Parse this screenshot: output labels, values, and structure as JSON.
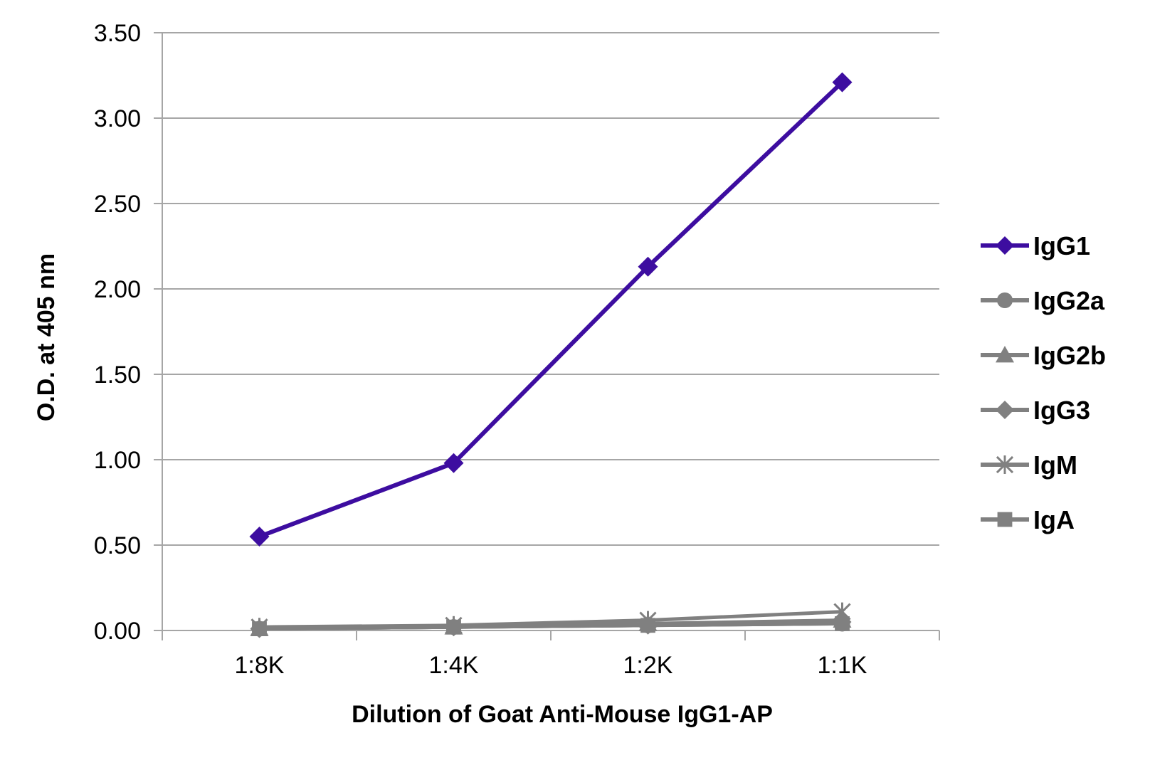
{
  "chart_data": {
    "type": "line",
    "title": "",
    "xlabel": "Dilution of Goat Anti-Mouse IgG1-AP",
    "ylabel": "O.D. at 405 nm",
    "categories": [
      "1:8K",
      "1:4K",
      "1:2K",
      "1:1K"
    ],
    "ylim": [
      0,
      3.5
    ],
    "yticks": [
      "0.00",
      "0.50",
      "1.00",
      "1.50",
      "2.00",
      "2.50",
      "3.00",
      "3.50"
    ],
    "grid": true,
    "legend_position": "right",
    "series": [
      {
        "name": "IgG1",
        "marker": "diamond",
        "color": "#3d0da0",
        "values": [
          0.55,
          0.98,
          2.13,
          3.21
        ]
      },
      {
        "name": "IgG2a",
        "marker": "circle",
        "color": "#808080",
        "values": [
          0.01,
          0.02,
          0.03,
          0.04
        ]
      },
      {
        "name": "IgG2b",
        "marker": "triangle",
        "color": "#808080",
        "values": [
          0.01,
          0.02,
          0.04,
          0.06
        ]
      },
      {
        "name": "IgG3",
        "marker": "diamond",
        "color": "#808080",
        "values": [
          0.01,
          0.02,
          0.03,
          0.05
        ]
      },
      {
        "name": "IgM",
        "marker": "star",
        "color": "#808080",
        "values": [
          0.02,
          0.03,
          0.06,
          0.11
        ]
      },
      {
        "name": "IgA",
        "marker": "square",
        "color": "#808080",
        "values": [
          0.01,
          0.02,
          0.03,
          0.04
        ]
      }
    ]
  }
}
